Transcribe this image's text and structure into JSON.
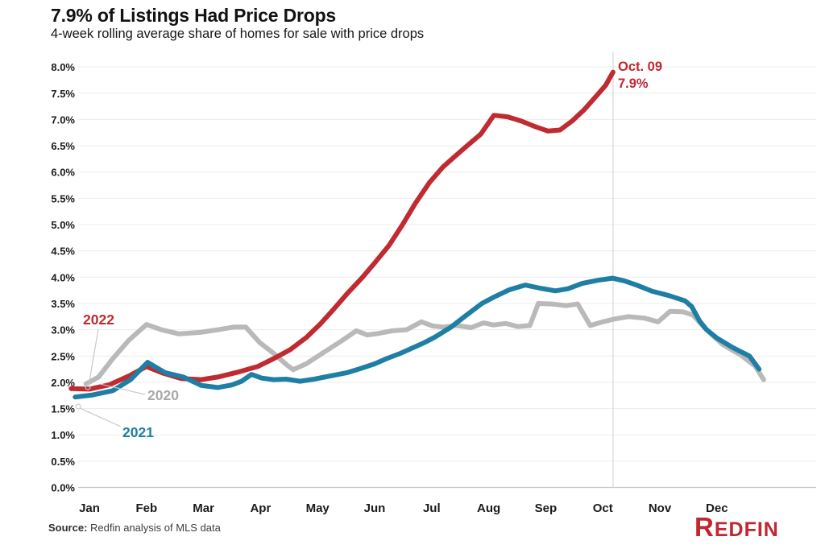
{
  "header": {
    "title": "7.9% of Listings Had Price Drops",
    "subtitle": "4-week rolling average share of homes for sale with price drops"
  },
  "series_labels": {
    "y2020": "2020",
    "y2021": "2021",
    "y2022": "2022"
  },
  "annotation": {
    "line1": "Oct. 09",
    "line2": "7.9%"
  },
  "footer": {
    "source_label": "Source:",
    "source_text": " Redfin analysis of MLS data",
    "logo_first": "R",
    "logo_rest": "EDFIN"
  },
  "colors": {
    "red_2022": "#c02a31",
    "blue_2021": "#1f7ea4",
    "gray_2020": "#b9b9b9",
    "gridline": "#ececec",
    "axis_line": "#c6c6c6",
    "ref_line": "#d9d9d9",
    "leader": "#c9c9c9",
    "label_gray": "#a9a9a9",
    "annotation_red": "#c02733"
  },
  "chart_data": {
    "type": "line",
    "title": "7.9% of Listings Had Price Drops",
    "subtitle": "4-week rolling average share of homes for sale with price drops",
    "x_unit": "month index, 0 = Jan tick through 11 = Dec tick, fractional values are weekly samples",
    "y_unit": "percent of listings with price drops",
    "months": [
      "Jan",
      "Feb",
      "Mar",
      "Apr",
      "May",
      "Jun",
      "Jul",
      "Aug",
      "Sep",
      "Oct",
      "Nov",
      "Dec"
    ],
    "ylim": [
      0,
      8
    ],
    "y_ticks": [
      0,
      0.5,
      1,
      1.5,
      2,
      2.5,
      3,
      3.5,
      4,
      4.5,
      5,
      5.5,
      6,
      6.5,
      7,
      7.5,
      8
    ],
    "grid": true,
    "annotation": {
      "date": "Oct. 09",
      "value": 7.9,
      "x": 9.18
    },
    "series": [
      {
        "name": "2020",
        "color": "#b9b9b9",
        "points": [
          [
            -0.06,
            1.97
          ],
          [
            0.16,
            2.1
          ],
          [
            0.41,
            2.45
          ],
          [
            0.69,
            2.8
          ],
          [
            1.0,
            3.1
          ],
          [
            1.26,
            3.0
          ],
          [
            1.57,
            2.92
          ],
          [
            1.94,
            2.95
          ],
          [
            2.25,
            3.0
          ],
          [
            2.53,
            3.05
          ],
          [
            2.74,
            3.05
          ],
          [
            2.98,
            2.76
          ],
          [
            3.23,
            2.55
          ],
          [
            3.46,
            2.33
          ],
          [
            3.57,
            2.24
          ],
          [
            3.8,
            2.35
          ],
          [
            4.08,
            2.55
          ],
          [
            4.41,
            2.78
          ],
          [
            4.68,
            2.98
          ],
          [
            4.87,
            2.9
          ],
          [
            5.07,
            2.93
          ],
          [
            5.31,
            2.98
          ],
          [
            5.56,
            3.0
          ],
          [
            5.82,
            3.15
          ],
          [
            6.02,
            3.07
          ],
          [
            6.2,
            3.05
          ],
          [
            6.44,
            3.08
          ],
          [
            6.69,
            3.04
          ],
          [
            6.91,
            3.13
          ],
          [
            7.08,
            3.09
          ],
          [
            7.3,
            3.12
          ],
          [
            7.51,
            3.06
          ],
          [
            7.72,
            3.08
          ],
          [
            7.87,
            3.5
          ],
          [
            8.11,
            3.49
          ],
          [
            8.36,
            3.46
          ],
          [
            8.56,
            3.49
          ],
          [
            8.78,
            3.08
          ],
          [
            9.0,
            3.15
          ],
          [
            9.19,
            3.2
          ],
          [
            9.45,
            3.25
          ],
          [
            9.73,
            3.22
          ],
          [
            9.97,
            3.15
          ],
          [
            10.18,
            3.35
          ],
          [
            10.41,
            3.34
          ],
          [
            10.58,
            3.28
          ],
          [
            10.79,
            3.03
          ],
          [
            11.1,
            2.72
          ],
          [
            11.43,
            2.51
          ],
          [
            11.67,
            2.31
          ],
          [
            11.82,
            2.05
          ]
        ]
      },
      {
        "name": "2022",
        "color": "#c02a31",
        "points": [
          [
            -0.32,
            1.88
          ],
          [
            0.0,
            1.87
          ],
          [
            0.34,
            1.95
          ],
          [
            0.69,
            2.12
          ],
          [
            1.0,
            2.3
          ],
          [
            1.3,
            2.17
          ],
          [
            1.61,
            2.07
          ],
          [
            1.96,
            2.05
          ],
          [
            2.25,
            2.1
          ],
          [
            2.63,
            2.2
          ],
          [
            2.95,
            2.3
          ],
          [
            3.23,
            2.45
          ],
          [
            3.52,
            2.62
          ],
          [
            3.8,
            2.85
          ],
          [
            4.04,
            3.1
          ],
          [
            4.29,
            3.4
          ],
          [
            4.53,
            3.7
          ],
          [
            4.79,
            4.0
          ],
          [
            5.0,
            4.27
          ],
          [
            5.25,
            4.6
          ],
          [
            5.49,
            5.0
          ],
          [
            5.71,
            5.4
          ],
          [
            5.96,
            5.8
          ],
          [
            6.2,
            6.1
          ],
          [
            6.41,
            6.3
          ],
          [
            6.62,
            6.5
          ],
          [
            6.86,
            6.72
          ],
          [
            7.09,
            7.08
          ],
          [
            7.33,
            7.05
          ],
          [
            7.57,
            6.97
          ],
          [
            7.8,
            6.87
          ],
          [
            8.04,
            6.78
          ],
          [
            8.25,
            6.8
          ],
          [
            8.46,
            6.97
          ],
          [
            8.67,
            7.18
          ],
          [
            8.89,
            7.45
          ],
          [
            9.05,
            7.65
          ],
          [
            9.18,
            7.9
          ]
        ]
      },
      {
        "name": "2021",
        "color": "#1f7ea4",
        "points": [
          [
            -0.25,
            1.72
          ],
          [
            0.06,
            1.76
          ],
          [
            0.41,
            1.84
          ],
          [
            0.72,
            2.05
          ],
          [
            1.02,
            2.38
          ],
          [
            1.33,
            2.18
          ],
          [
            1.65,
            2.1
          ],
          [
            1.96,
            1.94
          ],
          [
            2.25,
            1.9
          ],
          [
            2.5,
            1.95
          ],
          [
            2.67,
            2.02
          ],
          [
            2.84,
            2.15
          ],
          [
            3.02,
            2.08
          ],
          [
            3.23,
            2.05
          ],
          [
            3.45,
            2.06
          ],
          [
            3.69,
            2.02
          ],
          [
            3.94,
            2.06
          ],
          [
            4.22,
            2.12
          ],
          [
            4.51,
            2.18
          ],
          [
            4.75,
            2.26
          ],
          [
            5.0,
            2.35
          ],
          [
            5.21,
            2.45
          ],
          [
            5.45,
            2.55
          ],
          [
            5.68,
            2.66
          ],
          [
            5.88,
            2.76
          ],
          [
            6.06,
            2.86
          ],
          [
            6.34,
            3.05
          ],
          [
            6.6,
            3.27
          ],
          [
            6.88,
            3.5
          ],
          [
            7.09,
            3.62
          ],
          [
            7.36,
            3.76
          ],
          [
            7.64,
            3.85
          ],
          [
            7.9,
            3.79
          ],
          [
            8.17,
            3.74
          ],
          [
            8.39,
            3.78
          ],
          [
            8.64,
            3.88
          ],
          [
            8.91,
            3.94
          ],
          [
            9.17,
            3.98
          ],
          [
            9.38,
            3.93
          ],
          [
            9.59,
            3.85
          ],
          [
            9.87,
            3.73
          ],
          [
            10.16,
            3.65
          ],
          [
            10.44,
            3.55
          ],
          [
            10.56,
            3.44
          ],
          [
            10.7,
            3.16
          ],
          [
            10.82,
            3.0
          ],
          [
            11.0,
            2.84
          ],
          [
            11.28,
            2.66
          ],
          [
            11.57,
            2.5
          ],
          [
            11.74,
            2.25
          ]
        ]
      }
    ]
  }
}
